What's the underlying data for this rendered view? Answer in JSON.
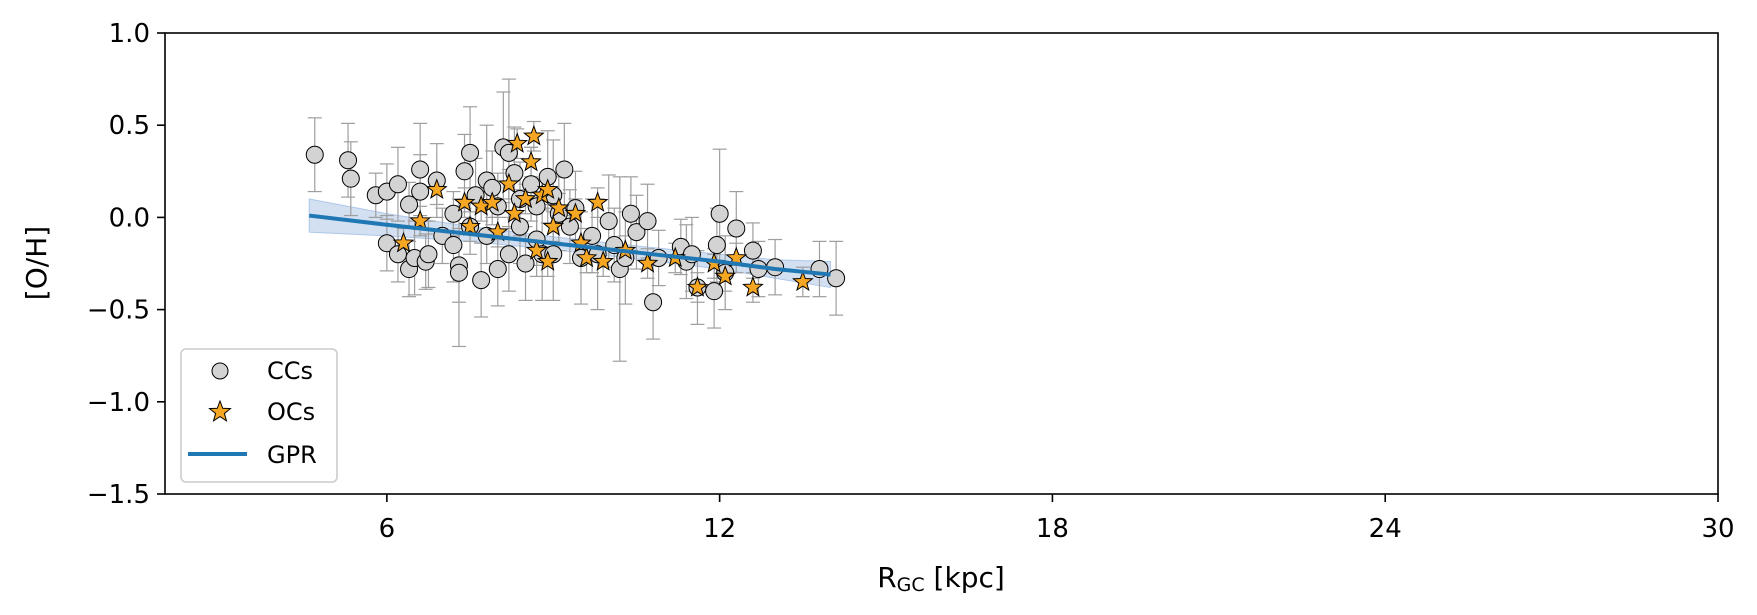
{
  "chart_data": {
    "type": "scatter",
    "xlabel_main": "R",
    "xlabel_sub": "GC",
    "xlabel_unit": " [kpc]",
    "ylabel": "[O/H]",
    "xlim": [
      2,
      30
    ],
    "ylim": [
      -1.5,
      1.0
    ],
    "xticks": [
      6,
      12,
      18,
      24,
      30
    ],
    "yticks": [
      -1.5,
      -1.0,
      -0.5,
      0.0,
      0.5,
      1.0
    ],
    "ytick_labels": [
      "−1.5",
      "−1.0",
      "−0.5",
      "0.0",
      "0.5",
      "1.0"
    ],
    "grid": false,
    "legend_position": "lower-left",
    "colors": {
      "cc_fill": "#d3d3d3",
      "oc_fill": "#f5a623",
      "gpr_line": "#1f77b4",
      "gpr_band": "#aec7e8",
      "errorbar": "#9e9e9e"
    },
    "legend": [
      {
        "label": "CCs",
        "marker": "circle"
      },
      {
        "label": "OCs",
        "marker": "star"
      },
      {
        "label": "GPR",
        "marker": "line"
      }
    ],
    "series": [
      {
        "name": "CCs",
        "marker": "circle",
        "points": [
          [
            4.7,
            0.34,
            0.2
          ],
          [
            5.3,
            0.31,
            0.2
          ],
          [
            5.35,
            0.21,
            0.2
          ],
          [
            5.8,
            0.12,
            0.12
          ],
          [
            6.0,
            0.14,
            0.15
          ],
          [
            6.0,
            -0.14,
            0.15
          ],
          [
            6.2,
            0.18,
            0.2
          ],
          [
            6.2,
            -0.2,
            0.15
          ],
          [
            6.4,
            0.07,
            0.12
          ],
          [
            6.4,
            -0.28,
            0.15
          ],
          [
            6.5,
            -0.22,
            0.2
          ],
          [
            6.6,
            0.26,
            0.25
          ],
          [
            6.6,
            0.14,
            0.2
          ],
          [
            6.7,
            -0.24,
            0.15
          ],
          [
            6.75,
            -0.2,
            0.18
          ],
          [
            6.9,
            0.2,
            0.2
          ],
          [
            7.0,
            -0.1,
            0.15
          ],
          [
            7.2,
            0.02,
            0.12
          ],
          [
            7.2,
            -0.15,
            0.2
          ],
          [
            7.3,
            -0.26,
            0.2
          ],
          [
            7.3,
            -0.3,
            0.4
          ],
          [
            7.4,
            0.25,
            0.2
          ],
          [
            7.5,
            0.35,
            0.25
          ],
          [
            7.5,
            -0.05,
            0.15
          ],
          [
            7.6,
            0.12,
            0.2
          ],
          [
            7.7,
            -0.34,
            0.2
          ],
          [
            7.8,
            0.2,
            0.3
          ],
          [
            7.8,
            -0.1,
            0.15
          ],
          [
            7.9,
            0.16,
            0.2
          ],
          [
            8.0,
            0.06,
            0.18
          ],
          [
            8.0,
            -0.28,
            0.2
          ],
          [
            8.1,
            0.38,
            0.3
          ],
          [
            8.2,
            0.35,
            0.4
          ],
          [
            8.2,
            -0.2,
            0.2
          ],
          [
            8.3,
            0.24,
            0.25
          ],
          [
            8.4,
            0.1,
            0.2
          ],
          [
            8.4,
            -0.05,
            0.2
          ],
          [
            8.5,
            -0.25,
            0.2
          ],
          [
            8.6,
            0.18,
            0.2
          ],
          [
            8.7,
            0.06,
            0.15
          ],
          [
            8.7,
            -0.12,
            0.2
          ],
          [
            8.8,
            -0.2,
            0.25
          ],
          [
            8.9,
            0.22,
            0.25
          ],
          [
            9.0,
            -0.2,
            0.25
          ],
          [
            9.0,
            0.12,
            0.3
          ],
          [
            9.1,
            0.02,
            0.2
          ],
          [
            9.2,
            0.26,
            0.25
          ],
          [
            9.3,
            -0.05,
            0.2
          ],
          [
            9.4,
            0.05,
            0.2
          ],
          [
            9.5,
            -0.22,
            0.25
          ],
          [
            9.7,
            -0.1,
            0.2
          ],
          [
            9.8,
            -0.2,
            0.3
          ],
          [
            10.0,
            -0.02,
            0.25
          ],
          [
            10.1,
            -0.15,
            0.2
          ],
          [
            10.2,
            -0.28,
            0.5
          ],
          [
            10.3,
            -0.22,
            0.25
          ],
          [
            10.4,
            0.02,
            0.2
          ],
          [
            10.5,
            -0.08,
            0.2
          ],
          [
            10.7,
            -0.02,
            0.2
          ],
          [
            10.8,
            -0.46,
            0.2
          ],
          [
            10.9,
            -0.22,
            0.15
          ],
          [
            11.3,
            -0.16,
            0.15
          ],
          [
            11.4,
            -0.24,
            0.2
          ],
          [
            11.5,
            -0.2,
            0.2
          ],
          [
            11.6,
            -0.38,
            0.2
          ],
          [
            11.9,
            -0.4,
            0.2
          ],
          [
            11.95,
            -0.15,
            0.2
          ],
          [
            12.0,
            0.02,
            0.35
          ],
          [
            12.1,
            -0.3,
            0.2
          ],
          [
            12.3,
            -0.06,
            0.2
          ],
          [
            12.6,
            -0.18,
            0.15
          ],
          [
            12.7,
            -0.28,
            0.15
          ],
          [
            13.0,
            -0.27,
            0.15
          ],
          [
            13.8,
            -0.28,
            0.15
          ],
          [
            14.1,
            -0.33,
            0.2
          ]
        ]
      },
      {
        "name": "OCs",
        "marker": "star",
        "points": [
          [
            6.3,
            -0.14,
            0.08
          ],
          [
            6.6,
            -0.02,
            0.08
          ],
          [
            6.9,
            0.15,
            0.08
          ],
          [
            7.4,
            0.08,
            0.08
          ],
          [
            7.5,
            -0.05,
            0.08
          ],
          [
            7.7,
            0.06,
            0.08
          ],
          [
            7.9,
            0.08,
            0.08
          ],
          [
            8.0,
            -0.08,
            0.08
          ],
          [
            8.2,
            0.18,
            0.08
          ],
          [
            8.3,
            0.02,
            0.08
          ],
          [
            8.35,
            0.4,
            0.08
          ],
          [
            8.5,
            0.1,
            0.08
          ],
          [
            8.6,
            0.3,
            0.08
          ],
          [
            8.65,
            0.44,
            0.08
          ],
          [
            8.7,
            -0.18,
            0.08
          ],
          [
            8.8,
            0.12,
            0.08
          ],
          [
            8.9,
            0.15,
            0.08
          ],
          [
            8.9,
            -0.24,
            0.08
          ],
          [
            9.0,
            -0.05,
            0.08
          ],
          [
            9.1,
            0.05,
            0.08
          ],
          [
            9.4,
            0.02,
            0.08
          ],
          [
            9.5,
            -0.14,
            0.08
          ],
          [
            9.6,
            -0.22,
            0.08
          ],
          [
            9.8,
            0.08,
            0.08
          ],
          [
            9.9,
            -0.24,
            0.08
          ],
          [
            10.3,
            -0.18,
            0.08
          ],
          [
            10.7,
            -0.25,
            0.08
          ],
          [
            11.2,
            -0.22,
            0.08
          ],
          [
            11.6,
            -0.38,
            0.08
          ],
          [
            11.9,
            -0.25,
            0.08
          ],
          [
            12.1,
            -0.32,
            0.08
          ],
          [
            12.3,
            -0.22,
            0.08
          ],
          [
            12.6,
            -0.38,
            0.08
          ],
          [
            13.5,
            -0.35,
            0.08
          ]
        ]
      }
    ],
    "gpr": {
      "name": "GPR",
      "x": [
        4.6,
        6.0,
        7.5,
        9.0,
        10.5,
        12.0,
        13.0,
        14.0
      ],
      "y": [
        0.01,
        -0.04,
        -0.09,
        -0.14,
        -0.19,
        -0.24,
        -0.28,
        -0.31
      ],
      "band": [
        0.09,
        0.06,
        0.04,
        0.035,
        0.035,
        0.04,
        0.05,
        0.07
      ]
    }
  }
}
